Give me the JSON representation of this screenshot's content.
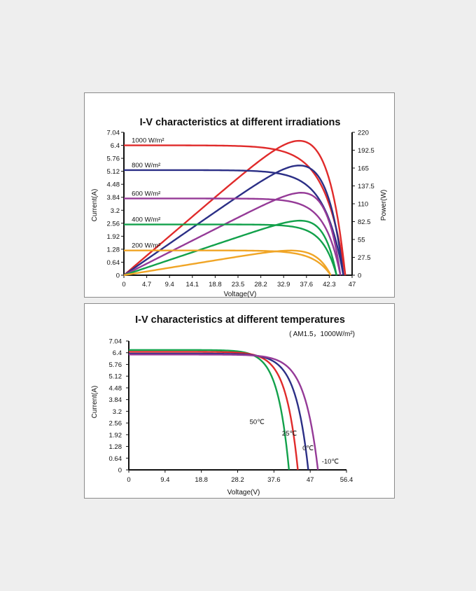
{
  "chart_data": [
    {
      "type": "line",
      "title": "I-V characteristics at different irradiations",
      "xlabel": "Voltage(V)",
      "ylabel": "Current(A)",
      "y2label": "Power(W)",
      "xlim": [
        0,
        47
      ],
      "ylim": [
        0,
        7.04
      ],
      "y2lim": [
        0,
        220
      ],
      "x_ticks": [
        "0",
        "4.7",
        "9.4",
        "14.1",
        "18.8",
        "23.5",
        "28.2",
        "32.9",
        "37.6",
        "42.3",
        "47"
      ],
      "y_ticks": [
        "0",
        "0.64",
        "1.28",
        "1.92",
        "2.56",
        "3.2",
        "3.84",
        "4.48",
        "5.12",
        "5.76",
        "6.4",
        "7.04"
      ],
      "y2_ticks": [
        "0",
        "27.5",
        "55",
        "82.5",
        "110",
        "137.5",
        "165",
        "192.5",
        "220"
      ],
      "series": [
        {
          "name": "1000 W/m²",
          "color": "#e02b2b",
          "isc": 6.4,
          "voc": 45.6,
          "pmax": 207,
          "vmp": 36.8
        },
        {
          "name": "800 W/m²",
          "color": "#2b2f86",
          "isc": 5.18,
          "voc": 45.2,
          "pmax": 169,
          "vmp": 37.2
        },
        {
          "name": "600 W/m²",
          "color": "#953a97",
          "isc": 3.78,
          "voc": 44.6,
          "pmax": 127,
          "vmp": 36.7
        },
        {
          "name": "400 W/m²",
          "color": "#12a14b",
          "isc": 2.5,
          "voc": 43.8,
          "pmax": 84,
          "vmp": 36.7
        },
        {
          "name": "200 W/m²",
          "color": "#f0a526",
          "isc": 1.22,
          "voc": 42.6,
          "pmax": 38,
          "vmp": 36.2
        }
      ]
    },
    {
      "type": "line",
      "title": "I-V characteristics at different temperatures",
      "subtitle": "( AM1.5，1000W/m²)",
      "xlabel": "Voltage(V)",
      "ylabel": "Current(A)",
      "xlim": [
        0,
        56.4
      ],
      "ylim": [
        0,
        7.04
      ],
      "x_ticks": [
        "0",
        "9.4",
        "18.8",
        "28.2",
        "37.6",
        "47",
        "56.4"
      ],
      "y_ticks": [
        "0",
        "0.64",
        "1.28",
        "1.92",
        "2.56",
        "3.2",
        "3.84",
        "4.48",
        "5.12",
        "5.76",
        "6.4",
        "7.04"
      ],
      "series": [
        {
          "name": "50℃",
          "color": "#12a14b",
          "isc": 6.55,
          "voc": 41.5
        },
        {
          "name": "25℃",
          "color": "#e02b2b",
          "isc": 6.45,
          "voc": 43.8
        },
        {
          "name": "0℃",
          "color": "#2b2f86",
          "isc": 6.35,
          "voc": 46.5
        },
        {
          "name": "-10℃",
          "color": "#953a97",
          "isc": 6.3,
          "voc": 49.0
        }
      ]
    }
  ]
}
